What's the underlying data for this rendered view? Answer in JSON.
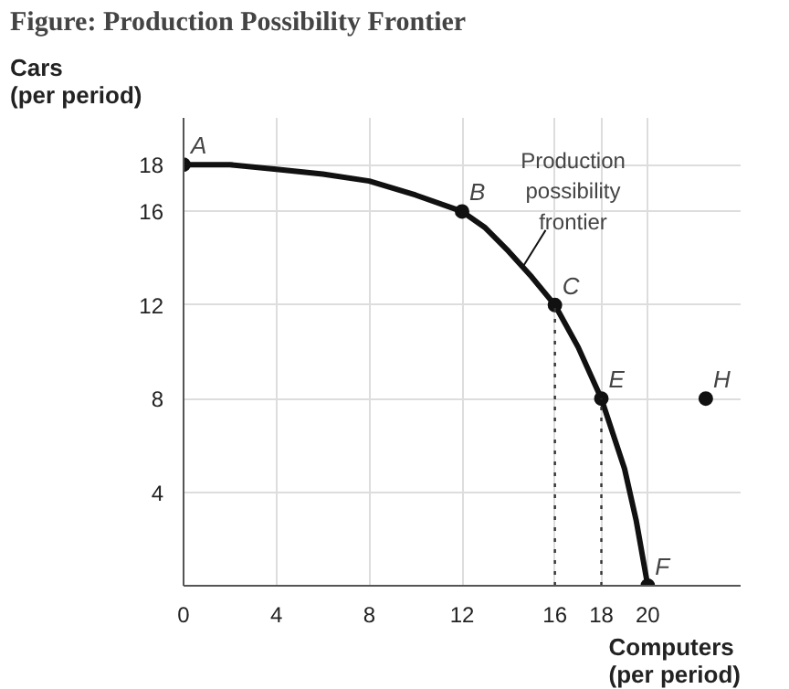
{
  "chart_data": {
    "type": "line",
    "title": "Figure: Production Possibility Frontier",
    "xlabel": "Computers\n(per period)",
    "ylabel": "Cars\n(per period)",
    "series": [
      {
        "color": "#111111",
        "marker": "none",
        "x": [
          0,
          2,
          4,
          6,
          8,
          10,
          12,
          13,
          14,
          15,
          16,
          17,
          18,
          18.5,
          19,
          19.5,
          20
        ],
        "values": [
          18,
          18,
          17.8,
          17.6,
          17.3,
          16.7,
          16,
          15.3,
          14.3,
          13.2,
          12,
          10.2,
          8,
          6.5,
          5,
          2.8,
          0
        ]
      },
      {
        "type": "scatter",
        "color": "#111111",
        "x": [
          0,
          12,
          16,
          18,
          20,
          22.5
        ],
        "values": [
          18,
          16,
          12,
          8,
          0,
          8
        ]
      }
    ],
    "xlim": [
      0,
      24
    ],
    "ylim": [
      0,
      20
    ],
    "xticks": [
      0,
      4,
      8,
      12,
      16,
      18,
      20
    ],
    "yticks": [
      4,
      8,
      12,
      16,
      18
    ],
    "grid": true,
    "marker": "circle",
    "ref_lines": [
      {
        "axis": "x",
        "value": 16,
        "label": null,
        "line_style": "dotted",
        "color": "#333333"
      },
      {
        "axis": "x",
        "value": 18,
        "label": null,
        "line_style": "dotted",
        "color": "#333333"
      }
    ],
    "annotations": [
      {
        "text": "A",
        "x": 0,
        "y": 18
      },
      {
        "text": "B",
        "x": 12,
        "y": 16
      },
      {
        "text": "C",
        "x": 16,
        "y": 12
      },
      {
        "text": "E",
        "x": 18,
        "y": 8
      },
      {
        "text": "F",
        "x": 20,
        "y": 0
      },
      {
        "text": "H",
        "x": 22.5,
        "y": 8
      },
      {
        "text": "Production\npossibility\nfrontier",
        "x": 14.6,
        "y": 13.6
      }
    ]
  }
}
